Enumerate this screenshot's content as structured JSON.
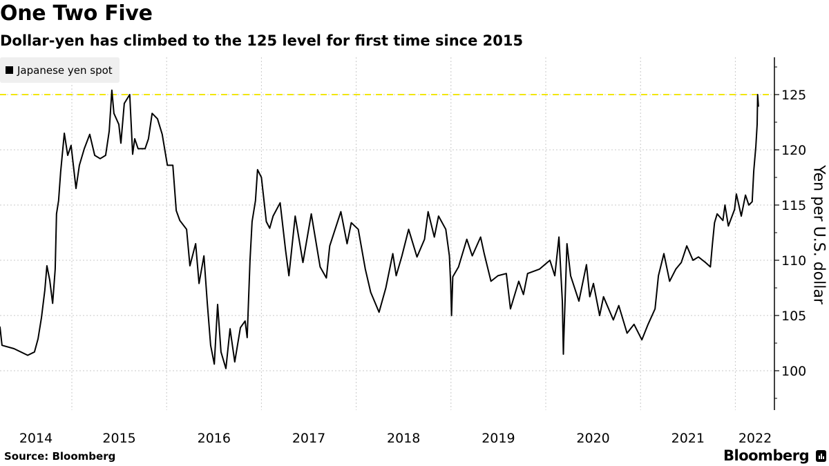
{
  "title": "One Two Five",
  "subtitle": "Dollar-yen has climbed to the 125 level for first time since 2015",
  "source": "Source: Bloomberg",
  "brand": "Bloomberg",
  "colors": {
    "line": "#000000",
    "reference_line": "#f2e600",
    "grid": "#c8c8c8",
    "legend_bg": "#efefef"
  },
  "chart_data": {
    "type": "line",
    "title": "One Two Five",
    "subtitle": "Dollar-yen has climbed to the 125 level for first time since 2015",
    "ylabel": "Yen per U.S. dollar",
    "xlabel": "",
    "ylim": [
      96.4,
      128.3
    ],
    "xlim": [
      "2014-03-30",
      "2022-03-31"
    ],
    "y_axis_side": "right",
    "yticks": [
      100,
      105,
      110,
      115,
      120,
      125
    ],
    "xticks": [
      "2014",
      "2015",
      "2016",
      "2017",
      "2018",
      "2019",
      "2020",
      "2021",
      "2022"
    ],
    "grid": true,
    "legend": {
      "placement": "top-left",
      "entries": [
        "Japanese yen spot"
      ]
    },
    "reference_line": {
      "y": 125,
      "style": "dashed",
      "color": "#f2e600"
    },
    "series": [
      {
        "name": "Japanese yen spot",
        "points": [
          [
            "2014-03-30",
            104.0
          ],
          [
            "2014-04-07",
            102.3
          ],
          [
            "2014-05-23",
            102.0
          ],
          [
            "2014-07-15",
            101.4
          ],
          [
            "2014-08-10",
            101.7
          ],
          [
            "2014-08-24",
            102.9
          ],
          [
            "2014-09-06",
            104.8
          ],
          [
            "2014-09-19",
            107.3
          ],
          [
            "2014-09-27",
            109.5
          ],
          [
            "2014-10-08",
            108.2
          ],
          [
            "2014-10-19",
            106.1
          ],
          [
            "2014-10-29",
            109.2
          ],
          [
            "2014-11-03",
            114.2
          ],
          [
            "2014-11-11",
            115.4
          ],
          [
            "2014-11-19",
            118.0
          ],
          [
            "2014-12-03",
            121.5
          ],
          [
            "2014-12-16",
            119.5
          ],
          [
            "2014-12-29",
            120.4
          ],
          [
            "2015-01-17",
            116.5
          ],
          [
            "2015-01-30",
            118.6
          ],
          [
            "2015-02-18",
            120.1
          ],
          [
            "2015-03-11",
            121.4
          ],
          [
            "2015-03-30",
            119.5
          ],
          [
            "2015-04-20",
            119.2
          ],
          [
            "2015-05-11",
            119.5
          ],
          [
            "2015-05-25",
            121.7
          ],
          [
            "2015-06-04",
            125.4
          ],
          [
            "2015-06-12",
            123.3
          ],
          [
            "2015-07-01",
            122.3
          ],
          [
            "2015-07-09",
            120.6
          ],
          [
            "2015-07-22",
            124.2
          ],
          [
            "2015-08-12",
            125.0
          ],
          [
            "2015-08-23",
            119.6
          ],
          [
            "2015-08-31",
            121.0
          ],
          [
            "2015-09-13",
            120.1
          ],
          [
            "2015-10-10",
            120.1
          ],
          [
            "2015-10-23",
            121.0
          ],
          [
            "2015-11-06",
            123.3
          ],
          [
            "2015-11-27",
            122.8
          ],
          [
            "2015-12-15",
            121.4
          ],
          [
            "2016-01-04",
            118.6
          ],
          [
            "2016-01-25",
            118.6
          ],
          [
            "2016-02-07",
            114.5
          ],
          [
            "2016-02-21",
            113.6
          ],
          [
            "2016-03-18",
            112.8
          ],
          [
            "2016-03-31",
            109.5
          ],
          [
            "2016-04-22",
            111.5
          ],
          [
            "2016-05-05",
            107.9
          ],
          [
            "2016-05-24",
            110.4
          ],
          [
            "2016-06-06",
            106.1
          ],
          [
            "2016-06-19",
            102.3
          ],
          [
            "2016-07-03",
            100.6
          ],
          [
            "2016-07-16",
            106.0
          ],
          [
            "2016-07-29",
            101.7
          ],
          [
            "2016-08-17",
            100.2
          ],
          [
            "2016-09-02",
            103.8
          ],
          [
            "2016-09-20",
            100.8
          ],
          [
            "2016-10-12",
            103.9
          ],
          [
            "2016-10-30",
            104.5
          ],
          [
            "2016-11-07",
            103.0
          ],
          [
            "2016-11-18",
            110.0
          ],
          [
            "2016-11-26",
            113.5
          ],
          [
            "2016-12-09",
            115.4
          ],
          [
            "2016-12-17",
            118.2
          ],
          [
            "2017-01-01",
            117.5
          ],
          [
            "2017-01-20",
            113.5
          ],
          [
            "2017-02-02",
            112.9
          ],
          [
            "2017-02-15",
            114.0
          ],
          [
            "2017-03-14",
            115.2
          ],
          [
            "2017-04-04",
            110.9
          ],
          [
            "2017-04-17",
            108.6
          ],
          [
            "2017-05-11",
            114.0
          ],
          [
            "2017-06-10",
            109.8
          ],
          [
            "2017-07-12",
            114.2
          ],
          [
            "2017-08-15",
            109.4
          ],
          [
            "2017-09-08",
            108.4
          ],
          [
            "2017-09-21",
            111.3
          ],
          [
            "2017-11-03",
            114.4
          ],
          [
            "2017-11-27",
            111.5
          ],
          [
            "2017-12-13",
            113.4
          ],
          [
            "2018-01-09",
            112.8
          ],
          [
            "2018-02-05",
            109.2
          ],
          [
            "2018-02-26",
            107.1
          ],
          [
            "2018-03-30",
            105.3
          ],
          [
            "2018-04-25",
            107.5
          ],
          [
            "2018-05-22",
            110.6
          ],
          [
            "2018-06-04",
            108.6
          ],
          [
            "2018-06-26",
            110.4
          ],
          [
            "2018-07-22",
            112.8
          ],
          [
            "2018-08-23",
            110.3
          ],
          [
            "2018-09-21",
            111.9
          ],
          [
            "2018-10-05",
            114.4
          ],
          [
            "2018-10-29",
            112.1
          ],
          [
            "2018-11-14",
            114.0
          ],
          [
            "2018-12-12",
            112.8
          ],
          [
            "2018-12-26",
            110.4
          ],
          [
            "2018-12-31",
            107.8
          ],
          [
            "2019-01-03",
            105.0
          ],
          [
            "2019-01-08",
            108.5
          ],
          [
            "2019-01-30",
            109.4
          ],
          [
            "2019-03-03",
            111.9
          ],
          [
            "2019-03-24",
            110.4
          ],
          [
            "2019-04-25",
            112.1
          ],
          [
            "2019-05-09",
            110.6
          ],
          [
            "2019-06-04",
            108.1
          ],
          [
            "2019-07-01",
            108.6
          ],
          [
            "2019-08-02",
            108.8
          ],
          [
            "2019-08-18",
            105.6
          ],
          [
            "2019-09-19",
            108.1
          ],
          [
            "2019-10-07",
            106.9
          ],
          [
            "2019-10-23",
            108.8
          ],
          [
            "2019-12-08",
            109.2
          ],
          [
            "2020-01-17",
            110.0
          ],
          [
            "2020-02-05",
            108.6
          ],
          [
            "2020-02-21",
            112.1
          ],
          [
            "2020-03-05",
            106.3
          ],
          [
            "2020-03-09",
            101.5
          ],
          [
            "2020-03-10",
            102.5
          ],
          [
            "2020-03-23",
            111.5
          ],
          [
            "2020-04-06",
            108.6
          ],
          [
            "2020-05-08",
            106.3
          ],
          [
            "2020-06-06",
            109.6
          ],
          [
            "2020-06-19",
            106.7
          ],
          [
            "2020-07-03",
            107.9
          ],
          [
            "2020-07-27",
            105.0
          ],
          [
            "2020-08-11",
            106.7
          ],
          [
            "2020-09-18",
            104.6
          ],
          [
            "2020-10-09",
            105.9
          ],
          [
            "2020-11-10",
            103.4
          ],
          [
            "2020-12-07",
            104.2
          ],
          [
            "2021-01-06",
            102.8
          ],
          [
            "2021-01-30",
            104.2
          ],
          [
            "2021-02-26",
            105.6
          ],
          [
            "2021-03-11",
            108.6
          ],
          [
            "2021-04-01",
            110.6
          ],
          [
            "2021-04-23",
            108.1
          ],
          [
            "2021-05-17",
            109.2
          ],
          [
            "2021-06-07",
            109.8
          ],
          [
            "2021-06-28",
            111.3
          ],
          [
            "2021-07-22",
            110.0
          ],
          [
            "2021-08-12",
            110.3
          ],
          [
            "2021-09-08",
            109.8
          ],
          [
            "2021-09-27",
            109.4
          ],
          [
            "2021-10-05",
            111.5
          ],
          [
            "2021-10-13",
            113.4
          ],
          [
            "2021-10-23",
            114.2
          ],
          [
            "2021-11-14",
            113.6
          ],
          [
            "2021-11-22",
            115.0
          ],
          [
            "2021-12-05",
            113.1
          ],
          [
            "2021-12-29",
            114.6
          ],
          [
            "2022-01-05",
            116.0
          ],
          [
            "2022-01-24",
            114.0
          ],
          [
            "2022-02-09",
            115.9
          ],
          [
            "2022-02-22",
            115.0
          ],
          [
            "2022-03-07",
            115.3
          ],
          [
            "2022-03-13",
            118.1
          ],
          [
            "2022-03-21",
            120.3
          ],
          [
            "2022-03-26",
            122.3
          ],
          [
            "2022-03-28",
            125.0
          ],
          [
            "2022-03-31",
            123.9
          ]
        ]
      }
    ]
  }
}
